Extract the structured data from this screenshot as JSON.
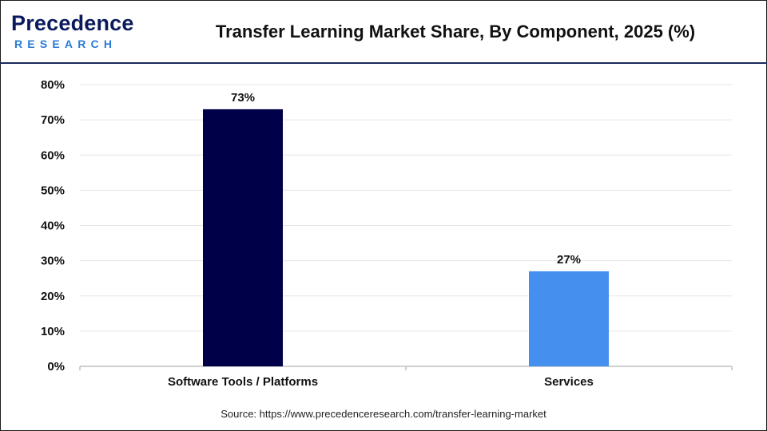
{
  "header": {
    "logo_top": "Precedence",
    "logo_bottom": "RESEARCH",
    "title": "Transfer Learning Market Share, By Component, 2025 (%)"
  },
  "footer": {
    "source": "Source: https://www.precedenceresearch.com/transfer-learning-market"
  },
  "colors": {
    "software": "#000048",
    "services": "#4590ef",
    "grid": "#e6e6e6",
    "axis": "#bfbfbf"
  },
  "chart_data": {
    "type": "bar",
    "title": "Transfer Learning Market Share, By Component, 2025 (%)",
    "categories": [
      "Software Tools / Platforms",
      "Services"
    ],
    "values": [
      73,
      27
    ],
    "data_labels": [
      "73%",
      "27%"
    ],
    "bar_colors": [
      "#000048",
      "#4590ef"
    ],
    "xlabel": "",
    "ylabel": "",
    "ylim": [
      0,
      80
    ],
    "yticks": [
      0,
      10,
      20,
      30,
      40,
      50,
      60,
      70,
      80
    ],
    "ytick_labels": [
      "0%",
      "10%",
      "20%",
      "30%",
      "40%",
      "50%",
      "60%",
      "70%",
      "80%"
    ],
    "grid": true,
    "legend": "none"
  }
}
